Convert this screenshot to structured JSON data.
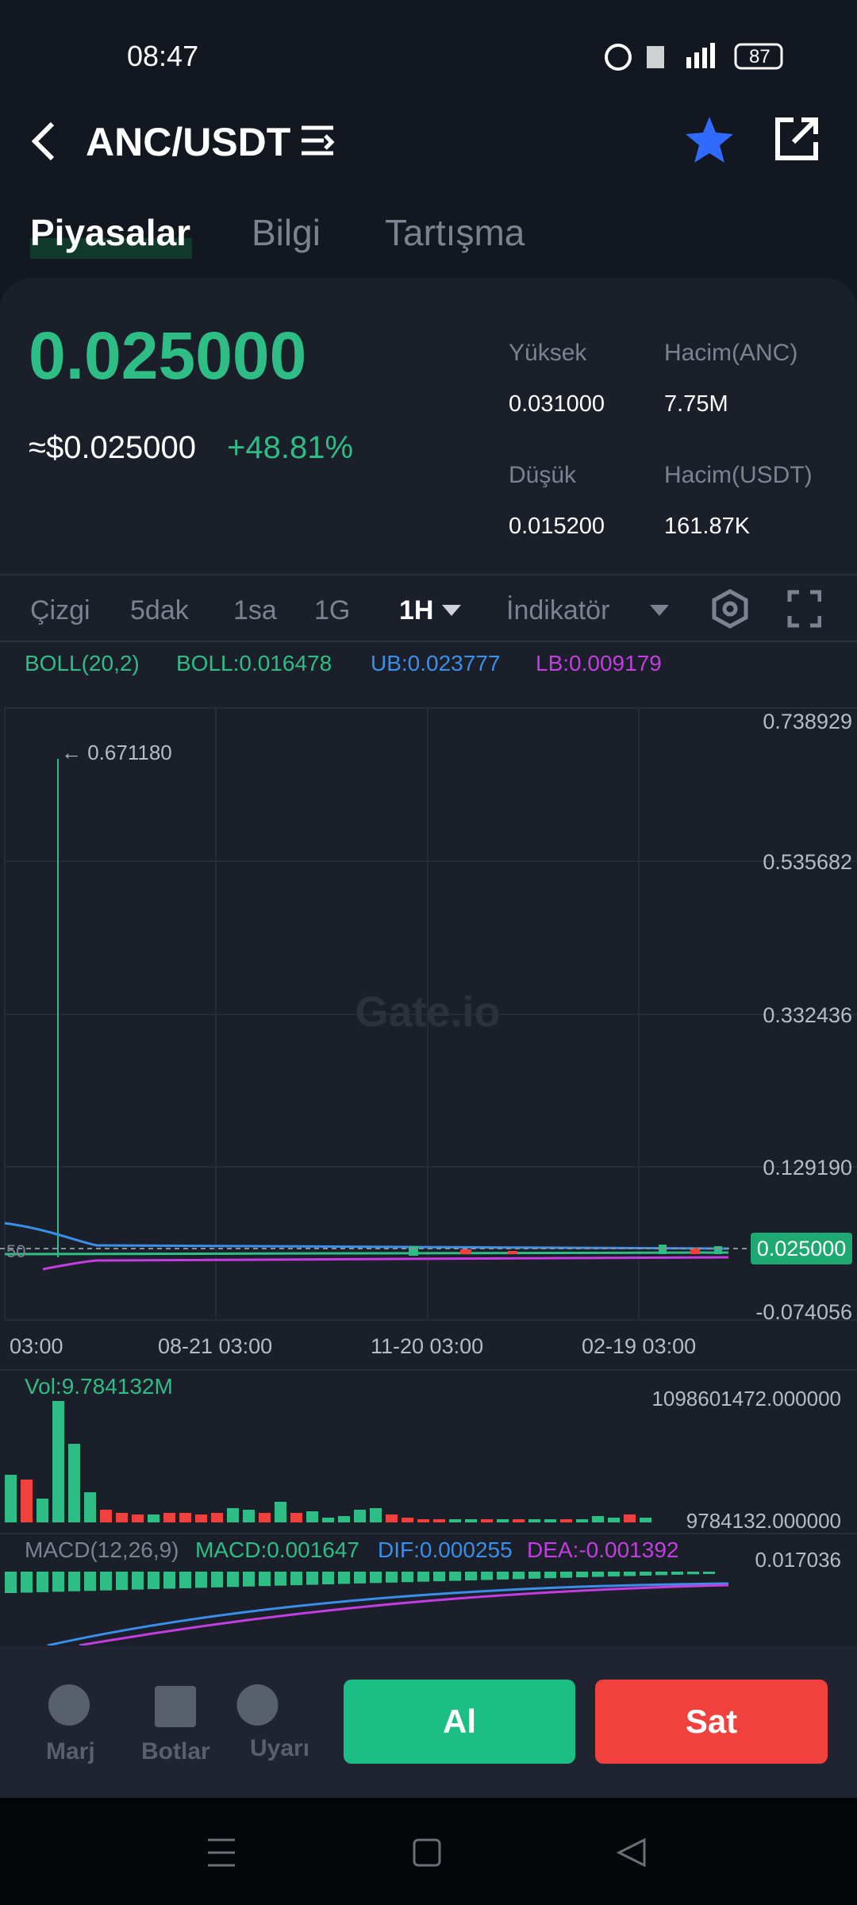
{
  "status": {
    "time": "08:47",
    "battery": "87"
  },
  "header": {
    "pair": "ANC/USDT"
  },
  "tabs": [
    "Piyasalar",
    "Bilgi",
    "Tartışma"
  ],
  "ticker": {
    "price": "0.025000",
    "usd": "≈$0.025000",
    "change": "+48.81%",
    "stats": [
      {
        "label": "Yüksek",
        "value": "0.031000"
      },
      {
        "label": "Hacim(ANC)",
        "value": "7.75M"
      },
      {
        "label": "Düşük",
        "value": "0.015200"
      },
      {
        "label": "Hacim(USDT)",
        "value": "161.87K"
      }
    ]
  },
  "toolbar": [
    "Çizgi",
    "5dak",
    "1sa",
    "1G",
    "1H",
    "İndikatör"
  ],
  "indicators": {
    "boll": "BOLL(20,2)",
    "boll_value": "BOLL:0.016478",
    "ub": "UB:0.023777",
    "lb": "LB:0.009179"
  },
  "chart": {
    "y_labels": [
      "0.738929",
      "0.535682",
      "0.332436",
      "0.129190",
      "-0.074056"
    ],
    "x_labels": [
      "03:00",
      "08-21 03:00",
      "11-20 03:00",
      "02-19 03:00"
    ],
    "peak_label": "← 0.671180",
    "current_price": "0.025000",
    "left_marker": "50",
    "watermark": "Gate.io"
  },
  "volume": {
    "title": "Vol:9.784132M",
    "max": "1098601472.000000",
    "min": "9784132.000000"
  },
  "macd": {
    "title": "MACD(12,26,9)",
    "macd": "MACD:0.001647",
    "dif": "DIF:0.000255",
    "dea": "DEA:-0.001392",
    "max": "0.017036"
  },
  "bottom": {
    "nav": [
      "Marj",
      "Botlar",
      "Uyarı"
    ],
    "buy": "Al",
    "sell": "Sat"
  }
}
